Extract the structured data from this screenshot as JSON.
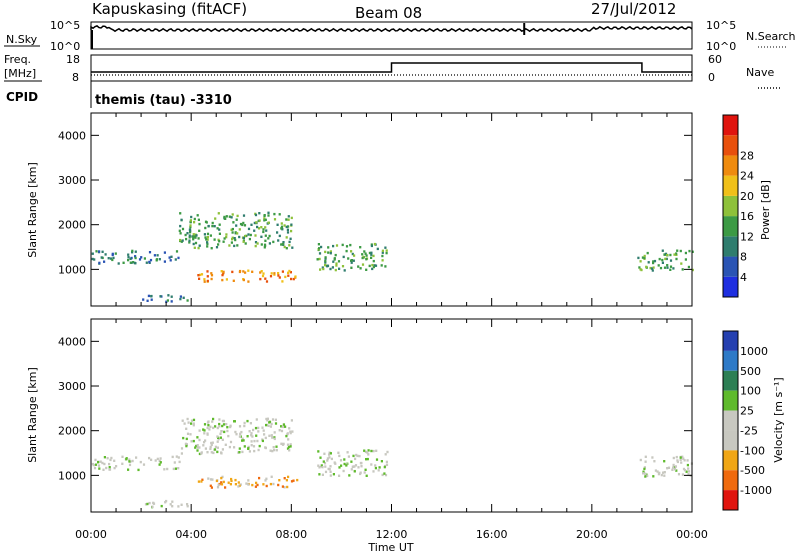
{
  "header": {
    "station": "Kapuskasing (fitACF)",
    "beam": "Beam 08",
    "date": "27/Jul/2012"
  },
  "top_panels": {
    "nsky_label": "N.Sky",
    "nsearch_label": "N.Search",
    "noise_ticks_left": [
      "10^5",
      "10^0"
    ],
    "noise_ticks_right": [
      "10^5",
      "10^0"
    ],
    "freq_label_1": "Freq.",
    "freq_label_2": "[MHz]",
    "freq_ticks": [
      "18",
      "8"
    ],
    "nave_label": "Nave",
    "nave_ticks": [
      "60",
      "0"
    ],
    "cpid_label": "CPID",
    "cpid_value": "themis (tau) -3310"
  },
  "colors": {
    "power_scale": [
      "#1f2fe0",
      "#2a54b4",
      "#2f7d6e",
      "#3c9a44",
      "#8ec13a",
      "#f0c019",
      "#ef8b0e",
      "#e8500c",
      "#e0140e"
    ],
    "velocity_scale": [
      "#2540b0",
      "#2e7ac7",
      "#2d7f54",
      "#5fba2c",
      "#c8c8c0",
      "#c8c8c0",
      "#f0a615",
      "#ef6a0e",
      "#e0140e"
    ]
  },
  "chart_data": [
    {
      "type": "heatmap",
      "title": "Power",
      "xlabel": "Time UT",
      "ylabel": "Slant Range [km]",
      "x_ticks": [
        "00:00",
        "04:00",
        "08:00",
        "12:00",
        "16:00",
        "20:00",
        "00:00"
      ],
      "xlim_hours": [
        0,
        24
      ],
      "ylim_km": [
        180,
        4500
      ],
      "y_ticks": [
        "1000",
        "2000",
        "3000",
        "4000"
      ],
      "colorbar_label": "Power [dB]",
      "colorbar_ticks": [
        "4",
        "8",
        "12",
        "16",
        "20",
        "24",
        "28"
      ],
      "echo_regions": [
        {
          "t": [
            0.0,
            3.5
          ],
          "r": [
            1150,
            1450
          ],
          "level": 2
        },
        {
          "t": [
            3.5,
            8.0
          ],
          "r": [
            1500,
            2300
          ],
          "level": 3
        },
        {
          "t": [
            4.2,
            8.2
          ],
          "r": [
            750,
            1000
          ],
          "level": 6
        },
        {
          "t": [
            2.0,
            4.0
          ],
          "r": [
            300,
            450
          ],
          "level": 2
        },
        {
          "t": [
            9.0,
            11.8
          ],
          "r": [
            1000,
            1600
          ],
          "level": 3
        },
        {
          "t": [
            21.8,
            24.0
          ],
          "r": [
            1000,
            1450
          ],
          "level": 3
        }
      ]
    },
    {
      "type": "heatmap",
      "title": "Velocity",
      "xlabel": "Time UT",
      "ylabel": "Slant Range [km]",
      "x_ticks": [
        "00:00",
        "04:00",
        "08:00",
        "12:00",
        "16:00",
        "20:00",
        "00:00"
      ],
      "xlim_hours": [
        0,
        24
      ],
      "ylim_km": [
        180,
        4500
      ],
      "y_ticks": [
        "1000",
        "2000",
        "3000",
        "4000"
      ],
      "colorbar_label": "Velocity [m s⁻¹]",
      "colorbar_ticks": [
        "1000",
        "500",
        "100",
        "25",
        "-25",
        "-100",
        "-500",
        "-1000"
      ],
      "echo_regions": [
        {
          "t": [
            0.0,
            3.5
          ],
          "r": [
            1150,
            1450
          ],
          "level": 4
        },
        {
          "t": [
            3.5,
            8.0
          ],
          "r": [
            1500,
            2300
          ],
          "level": 4
        },
        {
          "t": [
            4.2,
            8.2
          ],
          "r": [
            750,
            1000
          ],
          "level": 6
        },
        {
          "t": [
            2.0,
            4.0
          ],
          "r": [
            300,
            450
          ],
          "level": 4
        },
        {
          "t": [
            9.0,
            11.8
          ],
          "r": [
            1000,
            1600
          ],
          "level": 4
        },
        {
          "t": [
            21.8,
            24.0
          ],
          "r": [
            1000,
            1450
          ],
          "level": 4
        }
      ]
    }
  ]
}
